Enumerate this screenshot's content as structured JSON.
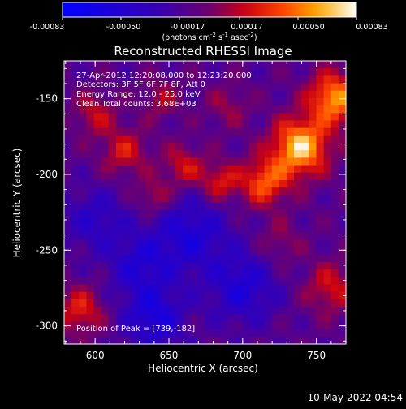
{
  "colorbar": {
    "tick_labels": [
      "-0.00083",
      "-0.00050",
      "-0.00017",
      "0.00017",
      "0.00050",
      "0.00083"
    ],
    "unit_label_parts": [
      "(photons cm",
      "-2",
      " s",
      "-1",
      " asec",
      "-2",
      ")"
    ],
    "range": [
      -0.00083,
      0.00083
    ]
  },
  "chart_data": {
    "type": "heatmap",
    "title": "Reconstructed RHESSI Image",
    "xlabel": "Heliocentric X (arcsec)",
    "ylabel": "Heliocentric Y (arcsec)",
    "xlim": [
      579,
      770
    ],
    "ylim": [
      -312,
      -125
    ],
    "x_ticks": [
      600,
      650,
      700,
      750
    ],
    "y_ticks": [
      -300,
      -250,
      -200,
      -150
    ],
    "x_tick_labels": [
      "600",
      "650",
      "700",
      "750"
    ],
    "y_tick_labels": [
      "-300",
      "-250",
      "-200",
      "-150"
    ],
    "annotations": [
      "27-Apr-2012 12:20:08.000 to 12:23:20.000",
      "Detectors: 3F 5F 6F 7F 8F, Att 0",
      "Energy Range: 12.0 - 25.0 keV",
      "Clean    Total counts: 3.68E+03"
    ],
    "peak_label": "Position of Peak = [739,-182]",
    "peak_position": [
      739,
      -182
    ],
    "sources": [
      {
        "x": 739,
        "y": -182,
        "amp": 0.00083,
        "sigma": 13
      },
      {
        "x": 762,
        "y": -150,
        "amp": 0.0007,
        "sigma": 12
      },
      {
        "x": 715,
        "y": -205,
        "amp": 0.00055,
        "sigma": 11
      },
      {
        "x": 685,
        "y": -205,
        "amp": 0.0004,
        "sigma": 9
      },
      {
        "x": 660,
        "y": -195,
        "amp": 0.00035,
        "sigma": 10
      },
      {
        "x": 640,
        "y": -215,
        "amp": 0.0003,
        "sigma": 8
      },
      {
        "x": 620,
        "y": -185,
        "amp": 0.00035,
        "sigma": 11
      },
      {
        "x": 600,
        "y": -160,
        "amp": 0.0003,
        "sigma": 10
      },
      {
        "x": 645,
        "y": -150,
        "amp": 0.00025,
        "sigma": 9
      },
      {
        "x": 690,
        "y": -155,
        "amp": 0.0002,
        "sigma": 10
      },
      {
        "x": 590,
        "y": -290,
        "amp": 0.0004,
        "sigma": 11
      },
      {
        "x": 760,
        "y": -275,
        "amp": 0.00035,
        "sigma": 12
      },
      {
        "x": 725,
        "y": -245,
        "amp": 0.0002,
        "sigma": 10
      },
      {
        "x": 665,
        "y": -240,
        "amp": -0.0004,
        "sigma": 18
      },
      {
        "x": 630,
        "y": -260,
        "amp": -0.00035,
        "sigma": 15
      },
      {
        "x": 700,
        "y": -275,
        "amp": -0.0004,
        "sigma": 16
      },
      {
        "x": 640,
        "y": -295,
        "amp": -0.00045,
        "sigma": 14
      },
      {
        "x": 600,
        "y": -230,
        "amp": -0.0003,
        "sigma": 14
      }
    ]
  },
  "footer": {
    "timestamp": "10-May-2022 04:54"
  }
}
